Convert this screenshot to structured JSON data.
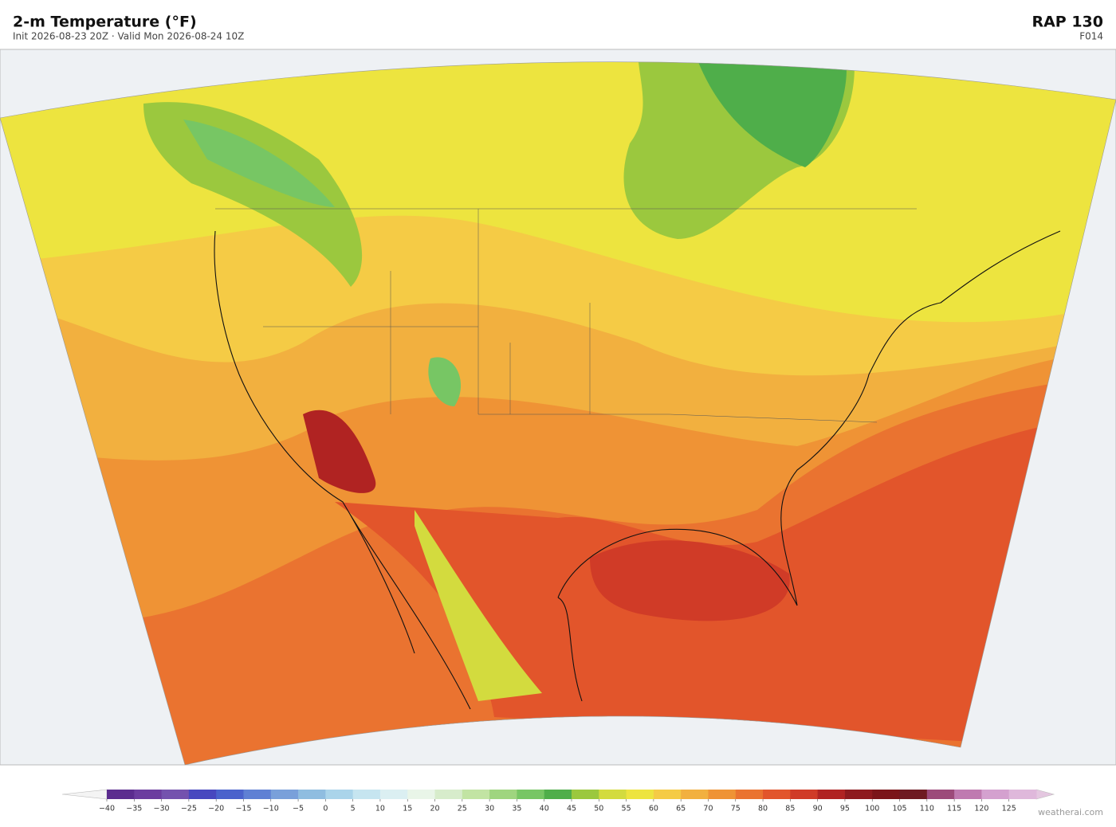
{
  "header": {
    "title": "2-m Temperature  (°F)",
    "subtitle": "Init 2026-08-23 20Z   ·   Valid Mon 2026-08-24 10Z",
    "model": "RAP  130",
    "forecast_hour": "F014"
  },
  "colorbar": {
    "ticks": [
      {
        "value": -40,
        "label": "−40"
      },
      {
        "value": -35,
        "label": "−35"
      },
      {
        "value": -30,
        "label": "−30"
      },
      {
        "value": -25,
        "label": "−25"
      },
      {
        "value": -20,
        "label": "−20"
      },
      {
        "value": -15,
        "label": "−15"
      },
      {
        "value": -10,
        "label": "−10"
      },
      {
        "value": -5,
        "label": "−5"
      },
      0,
      5,
      10,
      15,
      20,
      25,
      30,
      35,
      40,
      45,
      50,
      55,
      60,
      65,
      70,
      75,
      80,
      85,
      90,
      95,
      100,
      105,
      110,
      115,
      120,
      125
    ],
    "colors": [
      "#5b2c8f",
      "#6b3c9f",
      "#7452ae",
      "#4747bf",
      "#4a62cc",
      "#5f80d4",
      "#79a0da",
      "#8fbde0",
      "#aad4ea",
      "#c6e5f0",
      "#dbeff2",
      "#e9f5e8",
      "#d7eccb",
      "#c2e4a3",
      "#9fd57f",
      "#77c664",
      "#4fae4a",
      "#9bc83e",
      "#d3db3e",
      "#ede43f",
      "#f5cb45",
      "#f2b03f",
      "#ef9335",
      "#ea7330",
      "#e2552b",
      "#d03b27",
      "#b02322",
      "#8e1a1e",
      "#7b1519",
      "#6e1a22",
      "#9c4a7a",
      "#bf7ab0",
      "#d4a1cf",
      "#dfb8db"
    ]
  },
  "credit": "weatherai.com"
}
